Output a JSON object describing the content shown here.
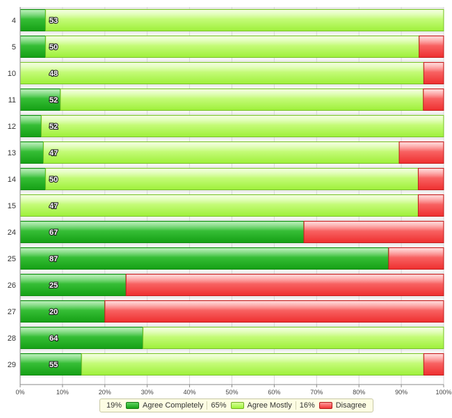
{
  "chart_data": {
    "type": "bar",
    "orientation": "horizontal",
    "stacked": "percent",
    "categories": [
      "4",
      "5",
      "10",
      "11",
      "12",
      "13",
      "14",
      "15",
      "24",
      "25",
      "26",
      "27",
      "28",
      "29"
    ],
    "totals": [
      "53",
      "50",
      "48",
      "52",
      "52",
      "47",
      "50",
      "47",
      "67",
      "87",
      "25",
      "20",
      "64",
      "55"
    ],
    "series": [
      {
        "name": "Agree Completely",
        "color": "#2eb82e",
        "values": [
          6,
          6,
          0,
          9.5,
          5,
          5.5,
          6,
          0,
          67,
          87,
          25,
          20,
          29,
          14.5
        ]
      },
      {
        "name": "Agree Mostly",
        "color": "#b6f75a",
        "values": [
          94,
          88.2,
          95.3,
          85.7,
          95,
          84,
          88,
          94,
          0,
          0,
          0,
          0,
          71,
          80.8
        ]
      },
      {
        "name": "Disagree",
        "color": "#f23c3c",
        "values": [
          0,
          5.8,
          4.7,
          4.8,
          0,
          10.5,
          6,
          6,
          33,
          13,
          75,
          80,
          0,
          4.7
        ]
      }
    ],
    "xlim": [
      0,
      100
    ],
    "x_ticks": [
      "0%",
      "10%",
      "20%",
      "30%",
      "40%",
      "50%",
      "60%",
      "70%",
      "80%",
      "90%",
      "100%"
    ],
    "legend": {
      "placement": "bottom-center",
      "items": [
        {
          "percent": "19%",
          "label": "Agree Completely"
        },
        {
          "percent": "65%",
          "label": "Agree Mostly"
        },
        {
          "percent": "16%",
          "label": "Disagree"
        }
      ]
    },
    "grid": true
  }
}
